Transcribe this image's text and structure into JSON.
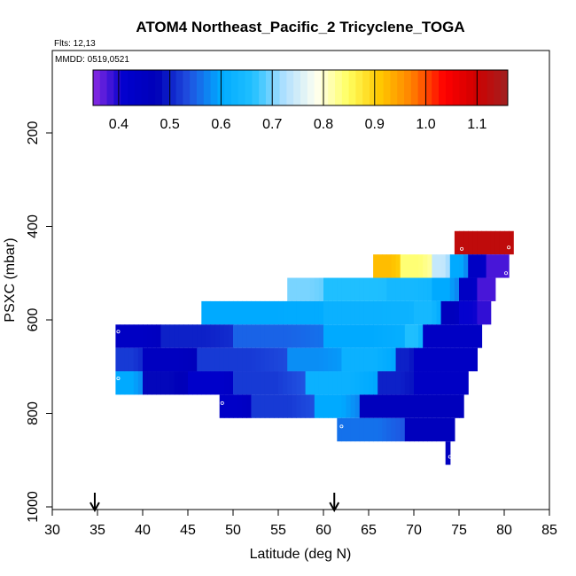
{
  "chart_data": {
    "type": "heatmap",
    "title": "ATOM4 Northeast_Pacific_2 Tricyclene_TOGA",
    "flights_label": "Flts: 12,13",
    "mmdd_label": "MMDD: 0519,0521",
    "xlabel": "Latitude (deg N)",
    "ylabel": "PSXC (mbar)",
    "xlim": [
      30,
      85
    ],
    "ylim": [
      1000,
      0
    ],
    "x_ticks": [
      30,
      35,
      40,
      45,
      50,
      55,
      60,
      65,
      70,
      75,
      80,
      85
    ],
    "y_ticks": [
      200,
      400,
      600,
      800,
      1000
    ],
    "colorbar": {
      "range": [
        0.35,
        1.16
      ],
      "ticks": [
        0.4,
        0.5,
        0.6,
        0.7,
        0.8,
        0.9,
        1.0,
        1.1
      ],
      "tick_labels": [
        "0.4",
        "0.5",
        "0.6",
        "0.7",
        "0.8",
        "0.9",
        "1.0",
        "1.1"
      ],
      "colors": [
        "#8a2be2",
        "#0000cd",
        "#0000b8",
        "#2050e0",
        "#00aaff",
        "#20c0ff",
        "#b0e0ff",
        "#fffff0",
        "#ffff60",
        "#ffc800",
        "#ff8000",
        "#ff0000",
        "#d00000",
        "#a02020"
      ]
    },
    "arrows_latitude": [
      34.7,
      61.2
    ],
    "bands": [
      {
        "p_top": 410,
        "p_bot": 460,
        "x0": 74.5,
        "x1": 81,
        "segments": [
          [
            74.5,
            81,
            1.12
          ]
        ]
      },
      {
        "p_top": 460,
        "p_bot": 510,
        "x0": 65.5,
        "x1": 80.5,
        "segments": [
          [
            65.5,
            68.5,
            0.92
          ],
          [
            68.5,
            72,
            0.84
          ],
          [
            72,
            74,
            0.74
          ],
          [
            74,
            76,
            0.6
          ],
          [
            76,
            78,
            0.44
          ],
          [
            78,
            80.5,
            0.38
          ]
        ]
      },
      {
        "p_top": 510,
        "p_bot": 560,
        "x0": 56,
        "x1": 79,
        "segments": [
          [
            56,
            60,
            0.7
          ],
          [
            60,
            67,
            0.66
          ],
          [
            67,
            72,
            0.64
          ],
          [
            72,
            75,
            0.6
          ],
          [
            75,
            77,
            0.44
          ],
          [
            77,
            79,
            0.38
          ]
        ]
      },
      {
        "p_top": 560,
        "p_bot": 610,
        "x0": 46.5,
        "x1": 78.5,
        "segments": [
          [
            46.5,
            60,
            0.6
          ],
          [
            60,
            70,
            0.62
          ],
          [
            70,
            73,
            0.64
          ],
          [
            73,
            75,
            0.46
          ],
          [
            75,
            77,
            0.41
          ],
          [
            77,
            78.5,
            0.39
          ]
        ]
      },
      {
        "p_top": 610,
        "p_bot": 660,
        "x0": 37,
        "x1": 77.5,
        "segments": [
          [
            37,
            42,
            0.44
          ],
          [
            42,
            50,
            0.5
          ],
          [
            50,
            60,
            0.55
          ],
          [
            60,
            69,
            0.6
          ],
          [
            69,
            71,
            0.66
          ],
          [
            71,
            77.5,
            0.44
          ]
        ]
      },
      {
        "p_top": 660,
        "p_bot": 710,
        "x0": 37,
        "x1": 77,
        "segments": [
          [
            37,
            40,
            0.52
          ],
          [
            40,
            46,
            0.45
          ],
          [
            46,
            56,
            0.52
          ],
          [
            56,
            62,
            0.58
          ],
          [
            62,
            68,
            0.62
          ],
          [
            68,
            70,
            0.5
          ],
          [
            70,
            77,
            0.44
          ]
        ]
      },
      {
        "p_top": 710,
        "p_bot": 760,
        "x0": 37,
        "x1": 76,
        "segments": [
          [
            37,
            40,
            0.6
          ],
          [
            40,
            45,
            0.48
          ],
          [
            45,
            50,
            0.42
          ],
          [
            50,
            58,
            0.52
          ],
          [
            58,
            66,
            0.62
          ],
          [
            66,
            70,
            0.5
          ],
          [
            70,
            76,
            0.44
          ]
        ]
      },
      {
        "p_top": 760,
        "p_bot": 810,
        "x0": 48.5,
        "x1": 75.5,
        "segments": [
          [
            48.5,
            52,
            0.43
          ],
          [
            52,
            59,
            0.52
          ],
          [
            59,
            64,
            0.6
          ],
          [
            64,
            75.5,
            0.46
          ]
        ]
      },
      {
        "p_top": 810,
        "p_bot": 860,
        "x0": 61.5,
        "x1": 74.5,
        "segments": [
          [
            61.5,
            69,
            0.56
          ],
          [
            69,
            74.5,
            0.46
          ]
        ]
      },
      {
        "p_top": 860,
        "p_bot": 910,
        "x0": 73.5,
        "x1": 74,
        "segments": [
          [
            73.5,
            74,
            0.45
          ]
        ]
      }
    ],
    "markers": [
      {
        "lat": 37.3,
        "p": 625
      },
      {
        "lat": 37.3,
        "p": 725
      },
      {
        "lat": 48.8,
        "p": 778
      },
      {
        "lat": 62.0,
        "p": 828
      },
      {
        "lat": 74.0,
        "p": 893
      },
      {
        "lat": 75.3,
        "p": 448
      },
      {
        "lat": 80.5,
        "p": 445
      },
      {
        "lat": 80.2,
        "p": 500
      }
    ]
  }
}
